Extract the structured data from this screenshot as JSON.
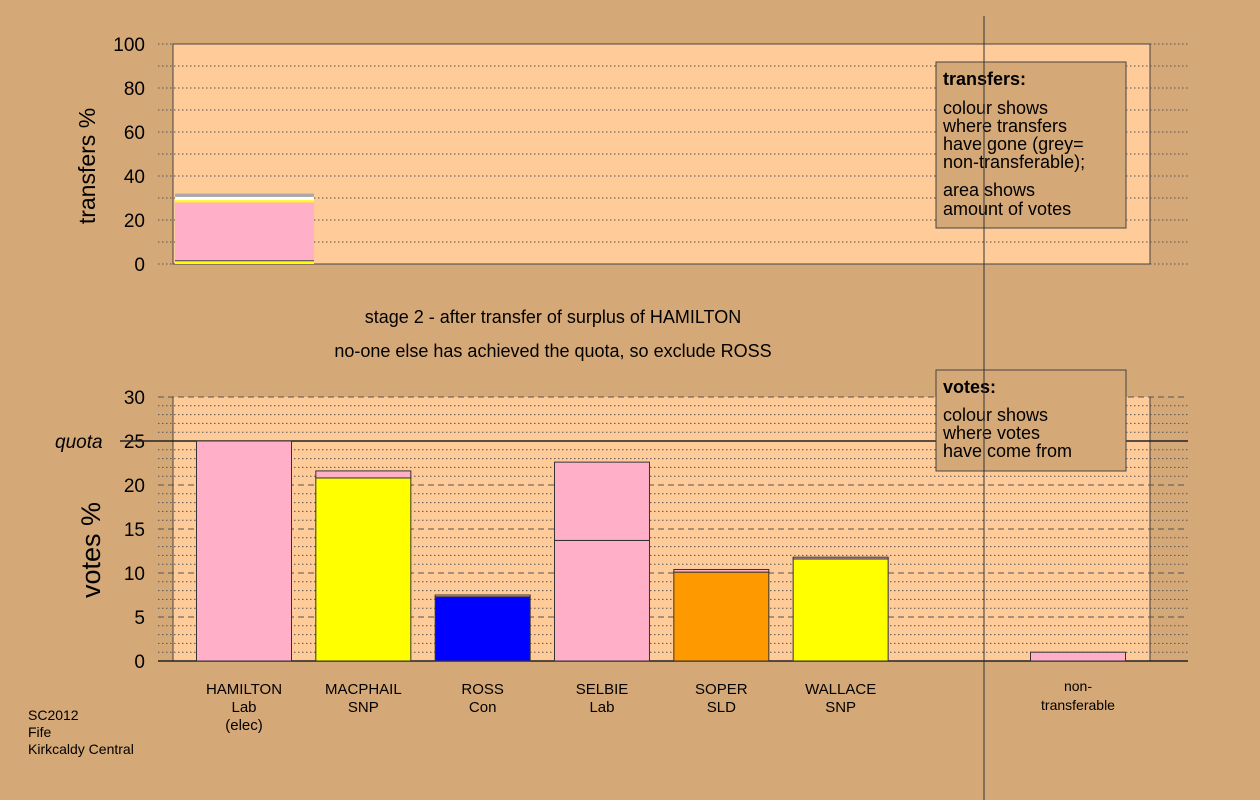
{
  "chart_data": [
    {
      "type": "bar",
      "ylabel": "transfers %",
      "ylim": [
        0,
        100
      ],
      "yticks": [
        0,
        20,
        40,
        60,
        80,
        100
      ],
      "stacks": [
        {
          "category": "HAMILTON",
          "segments": [
            {
              "value": 1.5,
              "color": "#ffff00"
            },
            {
              "value": 1.0,
              "color": "#ffb0c8"
            },
            {
              "value": 25.5,
              "color": "#ffb0c8"
            },
            {
              "value": 1.0,
              "color": "#ffff00"
            },
            {
              "value": 1.5,
              "color": "#ffffff"
            },
            {
              "value": 1.5,
              "color": "#a9a9a9"
            }
          ]
        }
      ],
      "legend": {
        "title": "transfers:",
        "lines1": [
          "colour shows",
          "where transfers",
          "have gone (grey=",
          "non-transferable);"
        ],
        "lines2": [
          "area shows",
          "amount of votes"
        ]
      }
    },
    {
      "type": "bar",
      "ylabel": "votes %",
      "ylim": [
        0,
        30
      ],
      "yticks": [
        0,
        5,
        10,
        15,
        20,
        25,
        30
      ],
      "quota": 25,
      "quota_label": "quota",
      "categories": [
        {
          "name": "HAMILTON",
          "party": "Lab",
          "note": "(elec)"
        },
        {
          "name": "MACPHAIL",
          "party": "SNP",
          "note": ""
        },
        {
          "name": "ROSS",
          "party": "Con",
          "note": ""
        },
        {
          "name": "SELBIE",
          "party": "Lab",
          "note": ""
        },
        {
          "name": "SOPER",
          "party": "SLD",
          "note": ""
        },
        {
          "name": "WALLACE",
          "party": "SNP",
          "note": ""
        }
      ],
      "stacks": [
        [
          {
            "value": 25.0,
            "color": "#ffb0c8"
          }
        ],
        [
          {
            "value": 20.8,
            "color": "#ffff00"
          },
          {
            "value": 0.8,
            "color": "#ffb0c8"
          }
        ],
        [
          {
            "value": 7.3,
            "color": "#0000ff"
          },
          {
            "value": 0.2,
            "color": "#ffb0c8"
          }
        ],
        [
          {
            "value": 13.7,
            "color": "#ffb0c8"
          },
          {
            "value": 8.9,
            "color": "#ffb0c8"
          }
        ],
        [
          {
            "value": 10.1,
            "color": "#ff9900"
          },
          {
            "value": 0.3,
            "color": "#ffb0c8"
          }
        ],
        [
          {
            "value": 11.6,
            "color": "#ffff00"
          },
          {
            "value": 0.2,
            "color": "#ffb0c8"
          }
        ]
      ],
      "nontransferable": {
        "label_lines": [
          "non-",
          "transferable"
        ],
        "value": 1.0,
        "color": "#ffb0c8"
      },
      "legend": {
        "title": "votes:",
        "lines": [
          "colour shows",
          "where votes",
          "have come from"
        ]
      }
    }
  ],
  "stage_title": "stage 2 - after transfer of surplus of HAMILTON",
  "stage_subtitle": "no-one else has achieved the quota, so exclude ROSS",
  "footer": {
    "line1": "SC2012",
    "line2": "Fife",
    "line3": "Kirkcaldy Central"
  }
}
